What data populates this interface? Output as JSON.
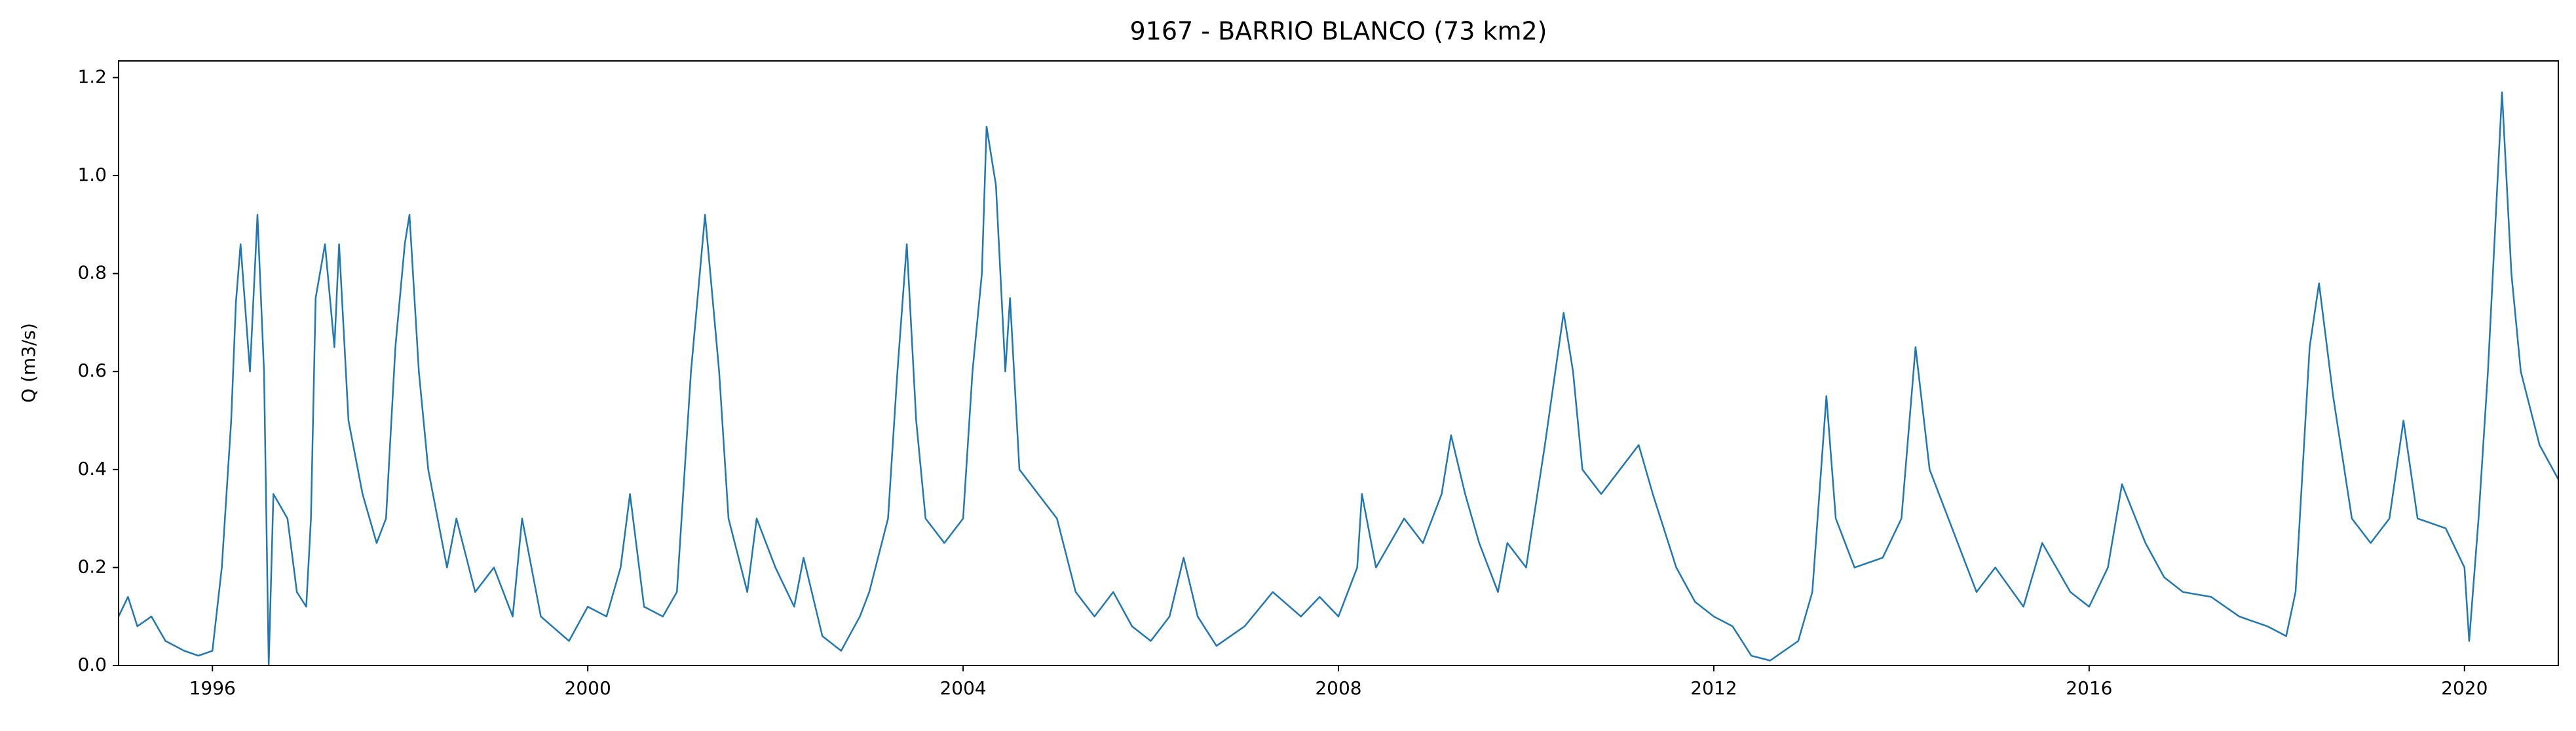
{
  "chart_data": {
    "type": "line",
    "title": "9167 - BARRIO BLANCO (73 km2)",
    "ylabel": "Q (m3/s)",
    "xlim": [
      1995.0,
      2021.0
    ],
    "xticks": [
      1996,
      2000,
      2004,
      2008,
      2012,
      2016,
      2020
    ],
    "ylim": [
      0,
      1.234
    ],
    "yticks": [
      {
        "value": 0,
        "label": "0.0"
      },
      {
        "value": 0.2,
        "label": "0.2"
      },
      {
        "value": 0.4,
        "label": "0.4"
      },
      {
        "value": 0.6,
        "label": "0.6"
      },
      {
        "value": 0.8,
        "label": "0.8"
      },
      {
        "value": 1.0,
        "label": "1.0"
      },
      {
        "value": 1.2,
        "label": "1.2"
      }
    ],
    "grid": false,
    "series": [
      {
        "color": "#1f77b4",
        "x": [
          1995.0,
          1995.1,
          1995.2,
          1995.35,
          1995.5,
          1995.7,
          1995.85,
          1996.0,
          1996.1,
          1996.2,
          1996.25,
          1996.3,
          1996.4,
          1996.48,
          1996.55,
          1996.6,
          1996.65,
          1996.8,
          1996.9,
          1997.0,
          1997.05,
          1997.1,
          1997.2,
          1997.3,
          1997.35,
          1997.45,
          1997.6,
          1997.75,
          1997.85,
          1997.95,
          1998.05,
          1998.1,
          1998.2,
          1998.3,
          1998.5,
          1998.6,
          1998.8,
          1999.0,
          1999.2,
          1999.3,
          1999.5,
          1999.8,
          2000.0,
          2000.2,
          2000.35,
          2000.45,
          2000.6,
          2000.8,
          2000.95,
          2001.0,
          2001.1,
          2001.25,
          2001.4,
          2001.5,
          2001.7,
          2001.8,
          2002.0,
          2002.2,
          2002.3,
          2002.5,
          2002.7,
          2002.9,
          2003.0,
          2003.2,
          2003.3,
          2003.4,
          2003.5,
          2003.6,
          2003.8,
          2004.0,
          2004.1,
          2004.2,
          2004.25,
          2004.35,
          2004.45,
          2004.5,
          2004.6,
          2004.8,
          2005.0,
          2005.2,
          2005.4,
          2005.6,
          2005.8,
          2006.0,
          2006.2,
          2006.35,
          2006.5,
          2006.7,
          2007.0,
          2007.3,
          2007.6,
          2007.8,
          2008.0,
          2008.2,
          2008.25,
          2008.4,
          2008.7,
          2008.9,
          2009.1,
          2009.2,
          2009.35,
          2009.5,
          2009.7,
          2009.8,
          2010.0,
          2010.2,
          2010.4,
          2010.5,
          2010.6,
          2010.8,
          2011.0,
          2011.2,
          2011.35,
          2011.6,
          2011.8,
          2012.0,
          2012.2,
          2012.4,
          2012.6,
          2012.9,
          2013.05,
          2013.2,
          2013.3,
          2013.5,
          2013.8,
          2014.0,
          2014.15,
          2014.3,
          2014.6,
          2014.8,
          2015.0,
          2015.3,
          2015.5,
          2015.8,
          2016.0,
          2016.2,
          2016.35,
          2016.6,
          2016.8,
          2017.0,
          2017.3,
          2017.6,
          2017.9,
          2018.1,
          2018.2,
          2018.35,
          2018.45,
          2018.6,
          2018.8,
          2019.0,
          2019.2,
          2019.35,
          2019.5,
          2019.8,
          2020.0,
          2020.05,
          2020.15,
          2020.25,
          2020.4,
          2020.5,
          2020.6,
          2020.8,
          2021.0
        ],
        "values": [
          0.1,
          0.14,
          0.08,
          0.1,
          0.05,
          0.03,
          0.02,
          0.03,
          0.2,
          0.5,
          0.74,
          0.86,
          0.6,
          0.92,
          0.6,
          0.0,
          0.35,
          0.3,
          0.15,
          0.12,
          0.3,
          0.75,
          0.86,
          0.65,
          0.86,
          0.5,
          0.35,
          0.25,
          0.3,
          0.65,
          0.86,
          0.92,
          0.6,
          0.4,
          0.2,
          0.3,
          0.15,
          0.2,
          0.1,
          0.3,
          0.1,
          0.05,
          0.12,
          0.1,
          0.2,
          0.35,
          0.12,
          0.1,
          0.15,
          0.3,
          0.6,
          0.92,
          0.6,
          0.3,
          0.15,
          0.3,
          0.2,
          0.12,
          0.22,
          0.06,
          0.03,
          0.1,
          0.15,
          0.3,
          0.6,
          0.86,
          0.5,
          0.3,
          0.25,
          0.3,
          0.6,
          0.8,
          1.1,
          0.98,
          0.6,
          0.75,
          0.4,
          0.35,
          0.3,
          0.15,
          0.1,
          0.15,
          0.08,
          0.05,
          0.1,
          0.22,
          0.1,
          0.04,
          0.08,
          0.15,
          0.1,
          0.14,
          0.1,
          0.2,
          0.35,
          0.2,
          0.3,
          0.25,
          0.35,
          0.47,
          0.35,
          0.25,
          0.15,
          0.25,
          0.2,
          0.45,
          0.72,
          0.6,
          0.4,
          0.35,
          0.4,
          0.45,
          0.35,
          0.2,
          0.13,
          0.1,
          0.08,
          0.02,
          0.01,
          0.05,
          0.15,
          0.55,
          0.3,
          0.2,
          0.22,
          0.3,
          0.65,
          0.4,
          0.25,
          0.15,
          0.2,
          0.12,
          0.25,
          0.15,
          0.12,
          0.2,
          0.37,
          0.25,
          0.18,
          0.15,
          0.14,
          0.1,
          0.08,
          0.06,
          0.15,
          0.65,
          0.78,
          0.55,
          0.3,
          0.25,
          0.3,
          0.5,
          0.3,
          0.28,
          0.2,
          0.05,
          0.3,
          0.6,
          1.17,
          0.8,
          0.6,
          0.45,
          0.38
        ]
      }
    ]
  }
}
